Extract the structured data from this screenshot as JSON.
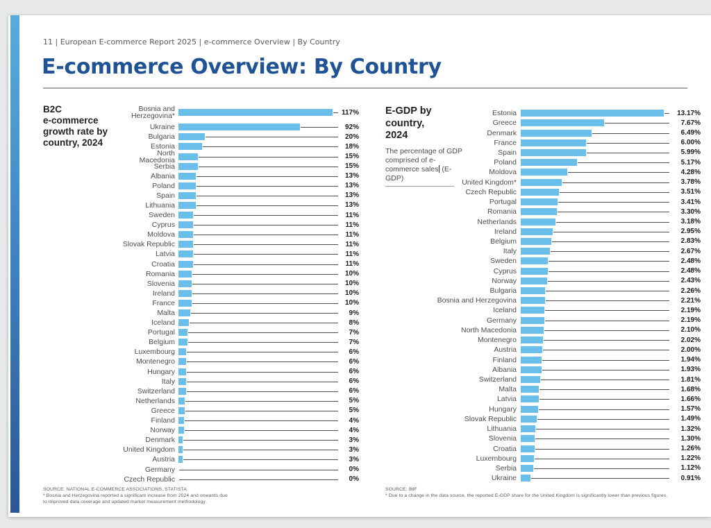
{
  "page": {
    "breadcrumb": "11 | European E-commerce Report 2025 | e-commerce Overview | By Country",
    "title": "E-commerce Overview: By Country"
  },
  "chart_data": [
    {
      "type": "bar",
      "orientation": "horizontal",
      "title": "B2C e-commerce growth rate by country, 2024",
      "title_lines": [
        "B2C",
        "e-commerce",
        "growth rate by",
        "country, 2024"
      ],
      "unit": "%",
      "xlim": [
        0,
        117
      ],
      "bar_color": "#69bfe9",
      "grid": false,
      "legend": "none",
      "categories": [
        "Bosnia and Herzegovina*",
        "Ukraine",
        "Bulgaria",
        "Estonia",
        "North Macedonia",
        "Serbia",
        "Albania",
        "Poland",
        "Spain",
        "Lithuania",
        "Sweden",
        "Cyprus",
        "Moldova",
        "Slovak Republic",
        "Latvia",
        "Croatia",
        "Romania",
        "Slovenia",
        "Ireland",
        "France",
        "Malta",
        "Iceland",
        "Portugal",
        "Belgium",
        "Luxembourg",
        "Montenegro",
        "Hungary",
        "Italy",
        "Switzerland",
        "Netherlands",
        "Greece",
        "Finland",
        "Norway",
        "Denmark",
        "United Kingdom",
        "Austria",
        "Germany",
        "Czech Republic"
      ],
      "values": [
        117,
        92,
        20,
        18,
        15,
        15,
        13,
        13,
        13,
        13,
        11,
        11,
        11,
        11,
        11,
        11,
        10,
        10,
        10,
        10,
        9,
        8,
        7,
        7,
        6,
        6,
        6,
        6,
        6,
        5,
        5,
        4,
        4,
        3,
        3,
        3,
        0,
        0
      ],
      "value_labels": [
        "117%",
        "92%",
        "20%",
        "18%",
        "15%",
        "15%",
        "13%",
        "13%",
        "13%",
        "13%",
        "11%",
        "11%",
        "11%",
        "11%",
        "11%",
        "11%",
        "10%",
        "10%",
        "10%",
        "10%",
        "9%",
        "8%",
        "7%",
        "7%",
        "6%",
        "6%",
        "6%",
        "6%",
        "6%",
        "5%",
        "5%",
        "4%",
        "4%",
        "3%",
        "3%",
        "3%",
        "0%",
        "0%"
      ],
      "source": "SOURCE: NATIONAL E-COMMERCE ASSOCIATIONS, STATISTA",
      "footnote_lines": [
        "* Bosnia and Herzegovina reported a significant increase from 2024 and onwards due",
        "to improved data coverage and updated market measurement methodology."
      ]
    },
    {
      "type": "bar",
      "orientation": "horizontal",
      "title": "E-GDP by country, 2024",
      "title_lines": [
        "E-GDP by",
        "country,",
        "2024"
      ],
      "description": "The percentage of GDP comprised of e-commerce sales (E-GDP)",
      "description_before_cursor": "The percentage of GDP comprised of e-commerce sales",
      "description_after_cursor": "(E-GDP)",
      "unit": "%",
      "xlim": [
        0,
        13.17
      ],
      "bar_color": "#69bfe9",
      "grid": false,
      "legend": "none",
      "categories": [
        "Estonia",
        "Greece",
        "Denmark",
        "France",
        "Spain",
        "Poland",
        "Moldova",
        "United Kingdom*",
        "Czech Republic",
        "Portugal",
        "Romania",
        "Netherlands",
        "Ireland",
        "Belgium",
        "Italy",
        "Sweden",
        "Cyprus",
        "Norway",
        "Bulgaria",
        "Bosnia and Herzegovina",
        "Iceland",
        "Germany",
        "North Macedonia",
        "Montenegro",
        "Austria",
        "Finland",
        "Albania",
        "Switzerland",
        "Malta",
        "Latvia",
        "Hungary",
        "Slovak Republic",
        "Lithuania",
        "Slovenia",
        "Croatia",
        "Luxembourg",
        "Serbia",
        "Ukraine"
      ],
      "values": [
        13.17,
        7.67,
        6.49,
        6.0,
        5.99,
        5.17,
        4.28,
        3.78,
        3.51,
        3.41,
        3.3,
        3.18,
        2.95,
        2.83,
        2.67,
        2.48,
        2.48,
        2.43,
        2.26,
        2.21,
        2.19,
        2.19,
        2.1,
        2.02,
        2.0,
        1.94,
        1.93,
        1.81,
        1.68,
        1.66,
        1.57,
        1.49,
        1.32,
        1.3,
        1.26,
        1.22,
        1.12,
        0.91
      ],
      "value_labels": [
        "13.17%",
        "7.67%",
        "6.49%",
        "6.00%",
        "5.99%",
        "5.17%",
        "4.28%",
        "3.78%",
        "3.51%",
        "3.41%",
        "3.30%",
        "3.18%",
        "2.95%",
        "2.83%",
        "2.67%",
        "2.48%",
        "2.48%",
        "2.43%",
        "2.26%",
        "2.21%",
        "2.19%",
        "2.19%",
        "2.10%",
        "2.02%",
        "2.00%",
        "1.94%",
        "1.93%",
        "1.81%",
        "1.68%",
        "1.66%",
        "1.57%",
        "1.49%",
        "1.32%",
        "1.30%",
        "1.26%",
        "1.22%",
        "1.12%",
        "0.91%"
      ],
      "source": "SOURCE: IMF",
      "footnote_lines": [
        "* Due to a change in the data source, the reported E-GDP share for the United Kingdom is significantly lower than previous figures."
      ]
    }
  ],
  "colors": {
    "bar": "#69bfe9",
    "title_blue": "#1f5394",
    "accent_strip_top": "#57acdf",
    "accent_strip_bottom": "#2b5697"
  }
}
